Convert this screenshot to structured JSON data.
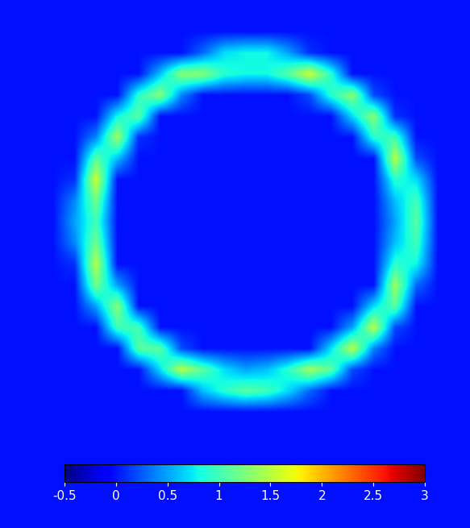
{
  "chart_data": {
    "type": "heatmap",
    "tick_labels": false,
    "cells": [
      [
        0,
        0,
        0,
        0,
        0,
        0,
        0,
        0,
        0,
        0,
        0,
        0,
        0,
        0,
        0,
        0,
        0,
        0,
        0,
        0,
        0,
        0
      ],
      [
        0,
        0,
        0,
        0,
        0,
        0,
        0,
        0,
        0,
        0,
        0,
        0,
        0,
        0,
        0,
        0,
        0,
        0,
        0,
        0,
        0,
        0
      ],
      [
        0,
        0,
        0,
        0,
        0,
        0,
        0,
        0,
        0,
        0.3,
        0.7,
        0.8,
        0.8,
        0.5,
        0.1,
        0,
        0,
        0,
        0,
        0,
        0,
        0
      ],
      [
        0,
        0,
        0,
        0,
        0,
        0,
        0,
        0.6,
        1.3,
        1.3,
        0.9,
        0.8,
        0.8,
        1.1,
        1.6,
        0.9,
        0,
        0,
        0,
        0,
        0,
        0
      ],
      [
        0,
        0,
        0,
        0,
        0,
        0,
        0.9,
        1.3,
        0.4,
        0,
        0,
        0,
        0,
        0,
        0.2,
        0.9,
        1.3,
        0.2,
        0,
        0,
        0,
        0
      ],
      [
        0,
        0,
        0,
        0,
        0,
        0.8,
        1.1,
        0,
        0,
        0,
        0,
        0,
        0,
        0,
        0,
        0,
        0.7,
        1.3,
        0.1,
        0,
        0,
        0
      ],
      [
        0,
        0,
        0,
        0,
        0.4,
        1.4,
        0.1,
        0,
        0,
        0,
        0,
        0,
        0,
        0,
        0,
        0,
        0,
        0.9,
        1.0,
        0,
        0,
        0
      ],
      [
        0,
        0,
        0,
        0,
        1.1,
        0.6,
        0,
        0,
        0,
        0,
        0,
        0,
        0,
        0,
        0,
        0,
        0,
        0,
        1.5,
        0.2,
        0,
        0
      ],
      [
        0,
        0,
        0,
        0.1,
        1.6,
        0,
        0,
        0,
        0,
        0,
        0,
        0,
        0,
        0,
        0,
        0,
        0,
        0,
        0.9,
        0.7,
        0,
        0
      ],
      [
        0,
        0,
        0,
        0.4,
        1.2,
        0,
        0,
        0,
        0,
        0,
        0,
        0,
        0,
        0,
        0,
        0,
        0,
        0,
        0.6,
        1.0,
        0,
        0
      ],
      [
        0,
        0,
        0,
        0.5,
        1.0,
        0,
        0,
        0,
        0,
        0,
        0,
        0,
        0,
        0,
        0,
        0,
        0,
        0,
        0.5,
        1.1,
        0,
        0
      ],
      [
        0,
        0,
        0,
        0.4,
        1.2,
        0,
        0,
        0,
        0,
        0,
        0,
        0,
        0,
        0,
        0,
        0,
        0,
        0,
        0.6,
        1.0,
        0,
        0
      ],
      [
        0,
        0,
        0,
        0.1,
        1.5,
        0,
        0,
        0,
        0,
        0,
        0,
        0,
        0,
        0,
        0,
        0,
        0,
        0,
        0.9,
        0.8,
        0,
        0
      ],
      [
        0,
        0,
        0,
        0,
        1.2,
        0.5,
        0,
        0,
        0,
        0,
        0,
        0,
        0,
        0,
        0,
        0,
        0,
        0,
        1.4,
        0.3,
        0,
        0
      ],
      [
        0,
        0,
        0,
        0,
        0.5,
        1.3,
        0,
        0,
        0,
        0,
        0,
        0,
        0,
        0,
        0,
        0,
        0,
        0.7,
        1.1,
        0,
        0,
        0
      ],
      [
        0,
        0,
        0,
        0,
        0,
        1.0,
        1.0,
        0,
        0,
        0,
        0,
        0,
        0,
        0,
        0,
        0,
        0.5,
        1.5,
        0.2,
        0,
        0,
        0
      ],
      [
        0,
        0,
        0,
        0,
        0,
        0,
        1.1,
        1.1,
        0.2,
        0,
        0,
        0,
        0,
        0,
        0,
        0.7,
        1.5,
        0.4,
        0,
        0,
        0,
        0
      ],
      [
        0,
        0,
        0,
        0,
        0,
        0,
        0,
        0.7,
        1.5,
        1.1,
        0.7,
        0.5,
        0.6,
        0.9,
        1.4,
        1.1,
        0.2,
        0,
        0,
        0,
        0,
        0
      ],
      [
        0,
        0,
        0,
        0,
        0,
        0,
        0,
        0,
        0,
        0.6,
        0.9,
        1.1,
        1.0,
        0.7,
        0.3,
        0,
        0,
        0,
        0,
        0,
        0,
        0
      ],
      [
        0,
        0,
        0,
        0,
        0,
        0,
        0,
        0,
        0,
        0,
        0,
        0,
        0,
        0,
        0,
        0,
        0,
        0,
        0,
        0,
        0,
        0
      ],
      [
        0,
        0,
        0,
        0,
        0,
        0,
        0,
        0,
        0,
        0,
        0,
        0,
        0,
        0,
        0,
        0,
        0,
        0,
        0,
        0,
        0,
        0
      ],
      [
        0,
        0,
        0,
        0,
        0,
        0,
        0,
        0,
        0,
        0,
        0,
        0,
        0,
        0,
        0,
        0,
        0,
        0,
        0,
        0,
        0,
        0
      ],
      [
        0,
        0,
        0,
        0,
        0,
        0,
        0,
        0,
        0,
        0,
        0,
        0,
        0,
        0,
        0,
        0,
        0,
        0,
        0,
        0,
        0,
        0
      ],
      [
        0,
        0,
        0,
        0,
        0,
        0,
        0,
        0,
        0,
        0,
        0,
        0,
        0,
        0,
        0,
        0,
        0,
        0,
        0,
        0,
        0,
        0
      ],
      [
        0,
        0,
        0,
        0,
        0,
        0,
        0,
        0,
        0,
        0,
        0,
        0,
        0,
        0,
        0,
        0,
        0,
        0,
        0,
        0,
        0,
        0
      ]
    ],
    "color_range": [
      -0.5,
      3
    ],
    "color_ticks": [
      -0.5,
      0,
      0.5,
      1,
      1.5,
      2,
      2.5,
      3
    ]
  }
}
